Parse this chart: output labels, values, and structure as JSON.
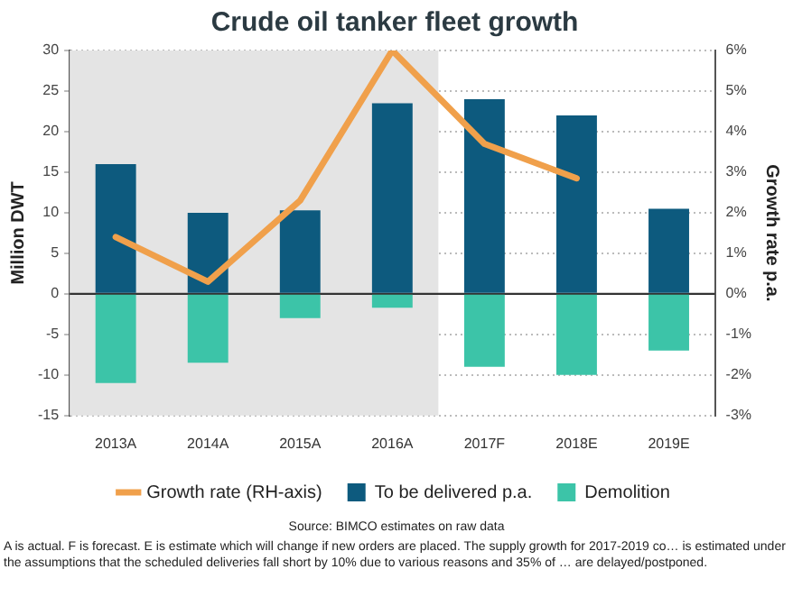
{
  "chart_data": {
    "type": "bar",
    "title": "Crude oil tanker fleet growth",
    "ylabel": "Million DWT",
    "y2label": "Growth rate p.a.",
    "categories": [
      "2013A",
      "2014A",
      "2015A",
      "2016A",
      "2017F",
      "2018E",
      "2019E"
    ],
    "stacked": true,
    "series": [
      {
        "name": "To be delivered p.a.",
        "color": "#0d5a7e",
        "values": [
          16,
          10,
          10.3,
          23.5,
          24,
          22,
          10.5
        ]
      },
      {
        "name": "Demolition",
        "color": "#3cc4a8",
        "values": [
          -11,
          -8.5,
          -3,
          -1.7,
          -9,
          -10,
          -7
        ]
      },
      {
        "name": "Growth rate (RH-axis)",
        "type": "line",
        "axis": "y2",
        "color": "#f0a04b",
        "values": [
          1.4,
          0.3,
          2.3,
          6,
          3.7,
          2.85,
          null
        ]
      }
    ],
    "ylim": [
      -15,
      30
    ],
    "yticks": [
      -15,
      -10,
      -5,
      0,
      5,
      10,
      15,
      20,
      25,
      30
    ],
    "y2lim": [
      -3,
      6
    ],
    "y2ticks": [
      {
        "value": -3,
        "label": "-3%"
      },
      {
        "value": -2,
        "label": "-2%"
      },
      {
        "value": -1,
        "label": "-1%"
      },
      {
        "value": 0,
        "label": "0%"
      },
      {
        "value": 1,
        "label": "1%"
      },
      {
        "value": 2,
        "label": "2%"
      },
      {
        "value": 3,
        "label": "3%"
      },
      {
        "value": 4,
        "label": "4%"
      },
      {
        "value": 5,
        "label": "5%"
      },
      {
        "value": 6,
        "label": "6%"
      }
    ],
    "bands": [
      {
        "axis": "x",
        "from": "2013A",
        "to": "2016A",
        "color": "#e4e4e4"
      }
    ],
    "ref_lines": [
      {
        "axis": "y",
        "value": 0,
        "color": "#333333"
      }
    ],
    "grid": "y",
    "legend": "bottom",
    "marker": "none",
    "annotations": [
      "Source: BIMCO estimates on raw data",
      "A is actual. F is forecast. E is estimate which will change if new orders are placed. The supply growth for 2017-2019 co… is estimated under the assumptions that the scheduled deliveries fall short by 10% due to various reasons and 35% of … are delayed/postponed."
    ]
  }
}
